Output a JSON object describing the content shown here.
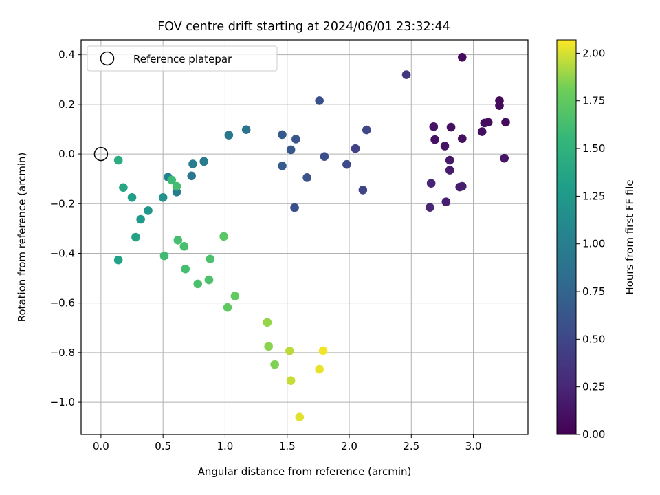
{
  "chart_data": {
    "type": "scatter",
    "title": "FOV centre drift starting at 2024/06/01 23:32:44",
    "xlabel": "Angular distance from reference (arcmin)",
    "ylabel": "Rotation from reference (arcmin)",
    "xlim": [
      -0.16,
      3.44
    ],
    "ylim": [
      -1.13,
      0.46
    ],
    "xticks": [
      0.0,
      0.5,
      1.0,
      1.5,
      2.0,
      2.5,
      3.0
    ],
    "xtick_labels": [
      "0.0",
      "0.5",
      "1.0",
      "1.5",
      "2.0",
      "2.5",
      "3.0"
    ],
    "yticks": [
      0.4,
      0.2,
      0.0,
      -0.2,
      -0.4,
      -0.6,
      -0.8,
      -1.0
    ],
    "ytick_labels": [
      "0.4",
      "0.2",
      "0.0",
      "−0.2",
      "−0.4",
      "−0.6",
      "−0.8",
      "−1.0"
    ],
    "grid": true,
    "legend": {
      "placement": "top-left",
      "label": "Reference platepar"
    },
    "reference_point": {
      "x": 0.0,
      "y": 0.0
    },
    "colorbar": {
      "label": "Hours from first FF file",
      "range": [
        0.0,
        2.07
      ],
      "ticks": [
        0.0,
        0.25,
        0.5,
        0.75,
        1.0,
        1.25,
        1.5,
        1.75,
        2.0
      ],
      "tick_labels": [
        "0.00",
        "0.25",
        "0.50",
        "0.75",
        "1.00",
        "1.25",
        "1.50",
        "1.75",
        "2.00"
      ],
      "colormap": "viridis"
    },
    "points": [
      {
        "x": 2.91,
        "y": 0.39,
        "c": 0.06
      },
      {
        "x": 3.21,
        "y": 0.215,
        "c": 0.05
      },
      {
        "x": 3.21,
        "y": 0.195,
        "c": 0.06
      },
      {
        "x": 3.09,
        "y": 0.125,
        "c": 0.08
      },
      {
        "x": 3.12,
        "y": 0.128,
        "c": 0.07
      },
      {
        "x": 3.26,
        "y": 0.128,
        "c": 0.07
      },
      {
        "x": 3.07,
        "y": 0.09,
        "c": 0.09
      },
      {
        "x": 2.91,
        "y": 0.062,
        "c": 0.1
      },
      {
        "x": 2.82,
        "y": 0.108,
        "c": 0.1
      },
      {
        "x": 2.68,
        "y": 0.11,
        "c": 0.12
      },
      {
        "x": 2.69,
        "y": 0.058,
        "c": 0.11
      },
      {
        "x": 2.77,
        "y": 0.032,
        "c": 0.12
      },
      {
        "x": 3.25,
        "y": -0.017,
        "c": 0.13
      },
      {
        "x": 2.81,
        "y": -0.025,
        "c": 0.16
      },
      {
        "x": 2.81,
        "y": -0.065,
        "c": 0.18
      },
      {
        "x": 2.66,
        "y": -0.118,
        "c": 0.24
      },
      {
        "x": 2.91,
        "y": -0.13,
        "c": 0.2
      },
      {
        "x": 2.89,
        "y": -0.133,
        "c": 0.19
      },
      {
        "x": 2.78,
        "y": -0.193,
        "c": 0.2
      },
      {
        "x": 2.65,
        "y": -0.215,
        "c": 0.25
      },
      {
        "x": 2.46,
        "y": 0.32,
        "c": 0.36
      },
      {
        "x": 2.14,
        "y": 0.097,
        "c": 0.5
      },
      {
        "x": 2.05,
        "y": 0.022,
        "c": 0.46
      },
      {
        "x": 2.11,
        "y": -0.145,
        "c": 0.48
      },
      {
        "x": 1.98,
        "y": -0.042,
        "c": 0.52
      },
      {
        "x": 1.76,
        "y": 0.215,
        "c": 0.58
      },
      {
        "x": 1.8,
        "y": -0.01,
        "c": 0.55
      },
      {
        "x": 1.66,
        "y": -0.095,
        "c": 0.6
      },
      {
        "x": 1.57,
        "y": 0.06,
        "c": 0.62
      },
      {
        "x": 1.56,
        "y": -0.216,
        "c": 0.57
      },
      {
        "x": 1.53,
        "y": 0.017,
        "c": 0.64
      },
      {
        "x": 1.46,
        "y": 0.078,
        "c": 0.66
      },
      {
        "x": 1.46,
        "y": -0.048,
        "c": 0.68
      },
      {
        "x": 1.17,
        "y": 0.098,
        "c": 0.9
      },
      {
        "x": 1.03,
        "y": 0.076,
        "c": 0.93
      },
      {
        "x": 0.83,
        "y": -0.03,
        "c": 0.97
      },
      {
        "x": 0.74,
        "y": -0.04,
        "c": 0.99
      },
      {
        "x": 0.73,
        "y": -0.088,
        "c": 0.93
      },
      {
        "x": 0.54,
        "y": -0.093,
        "c": 1.03
      },
      {
        "x": 0.61,
        "y": -0.153,
        "c": 0.98
      },
      {
        "x": 0.5,
        "y": -0.175,
        "c": 1.18
      },
      {
        "x": 0.38,
        "y": -0.228,
        "c": 1.22
      },
      {
        "x": 0.32,
        "y": -0.263,
        "c": 1.26
      },
      {
        "x": 0.25,
        "y": -0.175,
        "c": 1.3
      },
      {
        "x": 0.18,
        "y": -0.135,
        "c": 1.38
      },
      {
        "x": 0.14,
        "y": -0.025,
        "c": 1.45
      },
      {
        "x": 0.28,
        "y": -0.335,
        "c": 1.34
      },
      {
        "x": 0.14,
        "y": -0.427,
        "c": 1.33
      },
      {
        "x": 0.57,
        "y": -0.105,
        "c": 1.58
      },
      {
        "x": 0.61,
        "y": -0.13,
        "c": 1.62
      },
      {
        "x": 0.62,
        "y": -0.347,
        "c": 1.63
      },
      {
        "x": 0.67,
        "y": -0.372,
        "c": 1.64
      },
      {
        "x": 0.51,
        "y": -0.41,
        "c": 1.6
      },
      {
        "x": 0.68,
        "y": -0.463,
        "c": 1.62
      },
      {
        "x": 0.78,
        "y": -0.523,
        "c": 1.65
      },
      {
        "x": 0.88,
        "y": -0.423,
        "c": 1.66
      },
      {
        "x": 0.87,
        "y": -0.507,
        "c": 1.67
      },
      {
        "x": 0.99,
        "y": -0.332,
        "c": 1.72
      },
      {
        "x": 1.08,
        "y": -0.572,
        "c": 1.75
      },
      {
        "x": 1.02,
        "y": -0.618,
        "c": 1.74
      },
      {
        "x": 1.34,
        "y": -0.678,
        "c": 1.88
      },
      {
        "x": 1.35,
        "y": -0.775,
        "c": 1.86
      },
      {
        "x": 1.4,
        "y": -0.848,
        "c": 1.84
      },
      {
        "x": 1.52,
        "y": -0.793,
        "c": 1.95
      },
      {
        "x": 1.53,
        "y": -0.913,
        "c": 1.97
      },
      {
        "x": 1.6,
        "y": -1.06,
        "c": 2.02
      },
      {
        "x": 1.76,
        "y": -0.867,
        "c": 2.03
      },
      {
        "x": 1.79,
        "y": -0.792,
        "c": 2.05
      }
    ]
  }
}
